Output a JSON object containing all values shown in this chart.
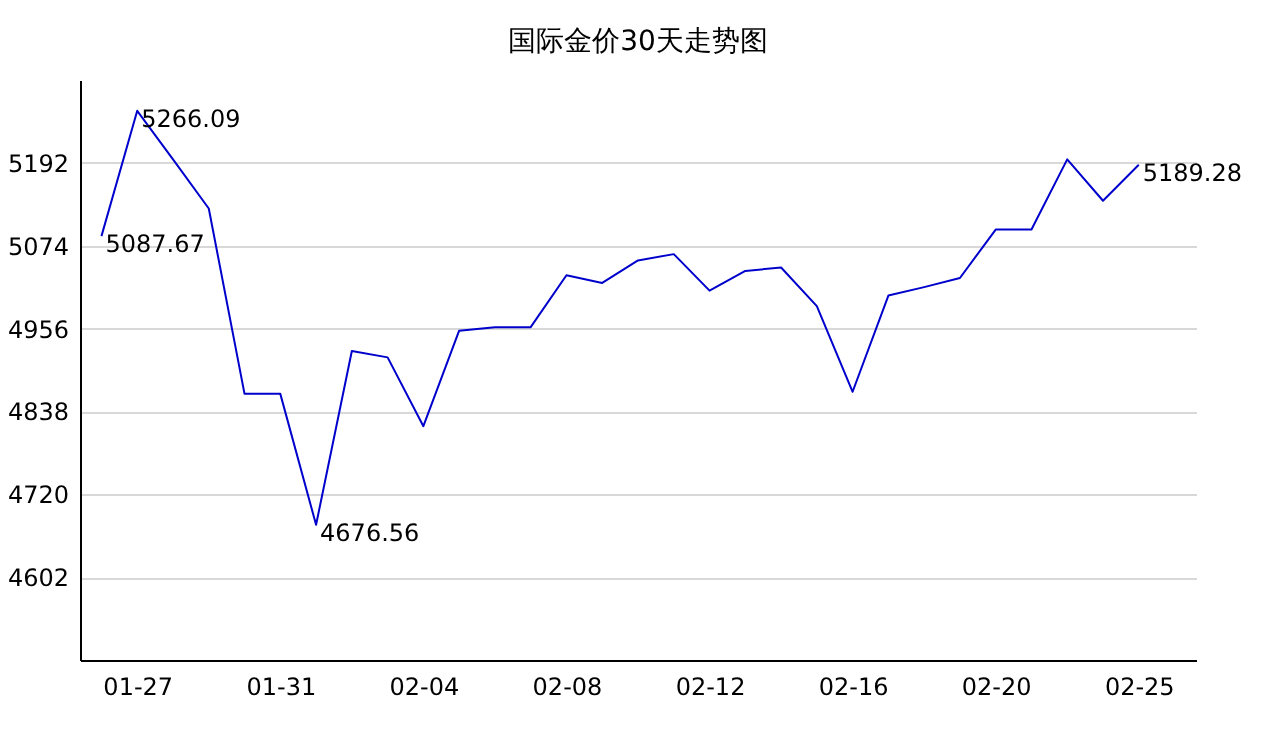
{
  "chart_data": {
    "type": "line",
    "title": "国际金价30天走势图",
    "categories": [
      null,
      "01-27",
      null,
      null,
      null,
      "01-31",
      null,
      null,
      null,
      "02-04",
      null,
      null,
      null,
      "02-08",
      null,
      null,
      null,
      "02-12",
      null,
      null,
      null,
      "02-16",
      null,
      null,
      null,
      "02-20",
      null,
      null,
      null,
      "02-25"
    ],
    "series": [
      {
        "color": "#0000cc",
        "values": [
          5087.67,
          5266.09,
          5197,
          5127,
          4863,
          4863,
          4676.56,
          4924,
          4915,
          4817,
          4953,
          4958,
          4958,
          5032,
          5021,
          5053,
          5062,
          5010,
          5038,
          5043,
          4988,
          4866,
          5003,
          5015,
          5028,
          5097,
          5097,
          5197,
          5138,
          5189.28
        ],
        "value_labels": [
          "5087.67",
          "5266.09",
          null,
          null,
          null,
          null,
          "4676.56",
          null,
          null,
          null,
          null,
          null,
          null,
          null,
          null,
          null,
          null,
          null,
          null,
          null,
          null,
          null,
          null,
          null,
          null,
          null,
          null,
          null,
          null,
          "5189.28"
        ]
      }
    ],
    "ylim": [
      4484,
      5310
    ],
    "yticks": [
      4602,
      4720,
      4838,
      4956,
      5074,
      5192
    ],
    "grid": "y",
    "marker": "none",
    "line_style": "solid"
  }
}
